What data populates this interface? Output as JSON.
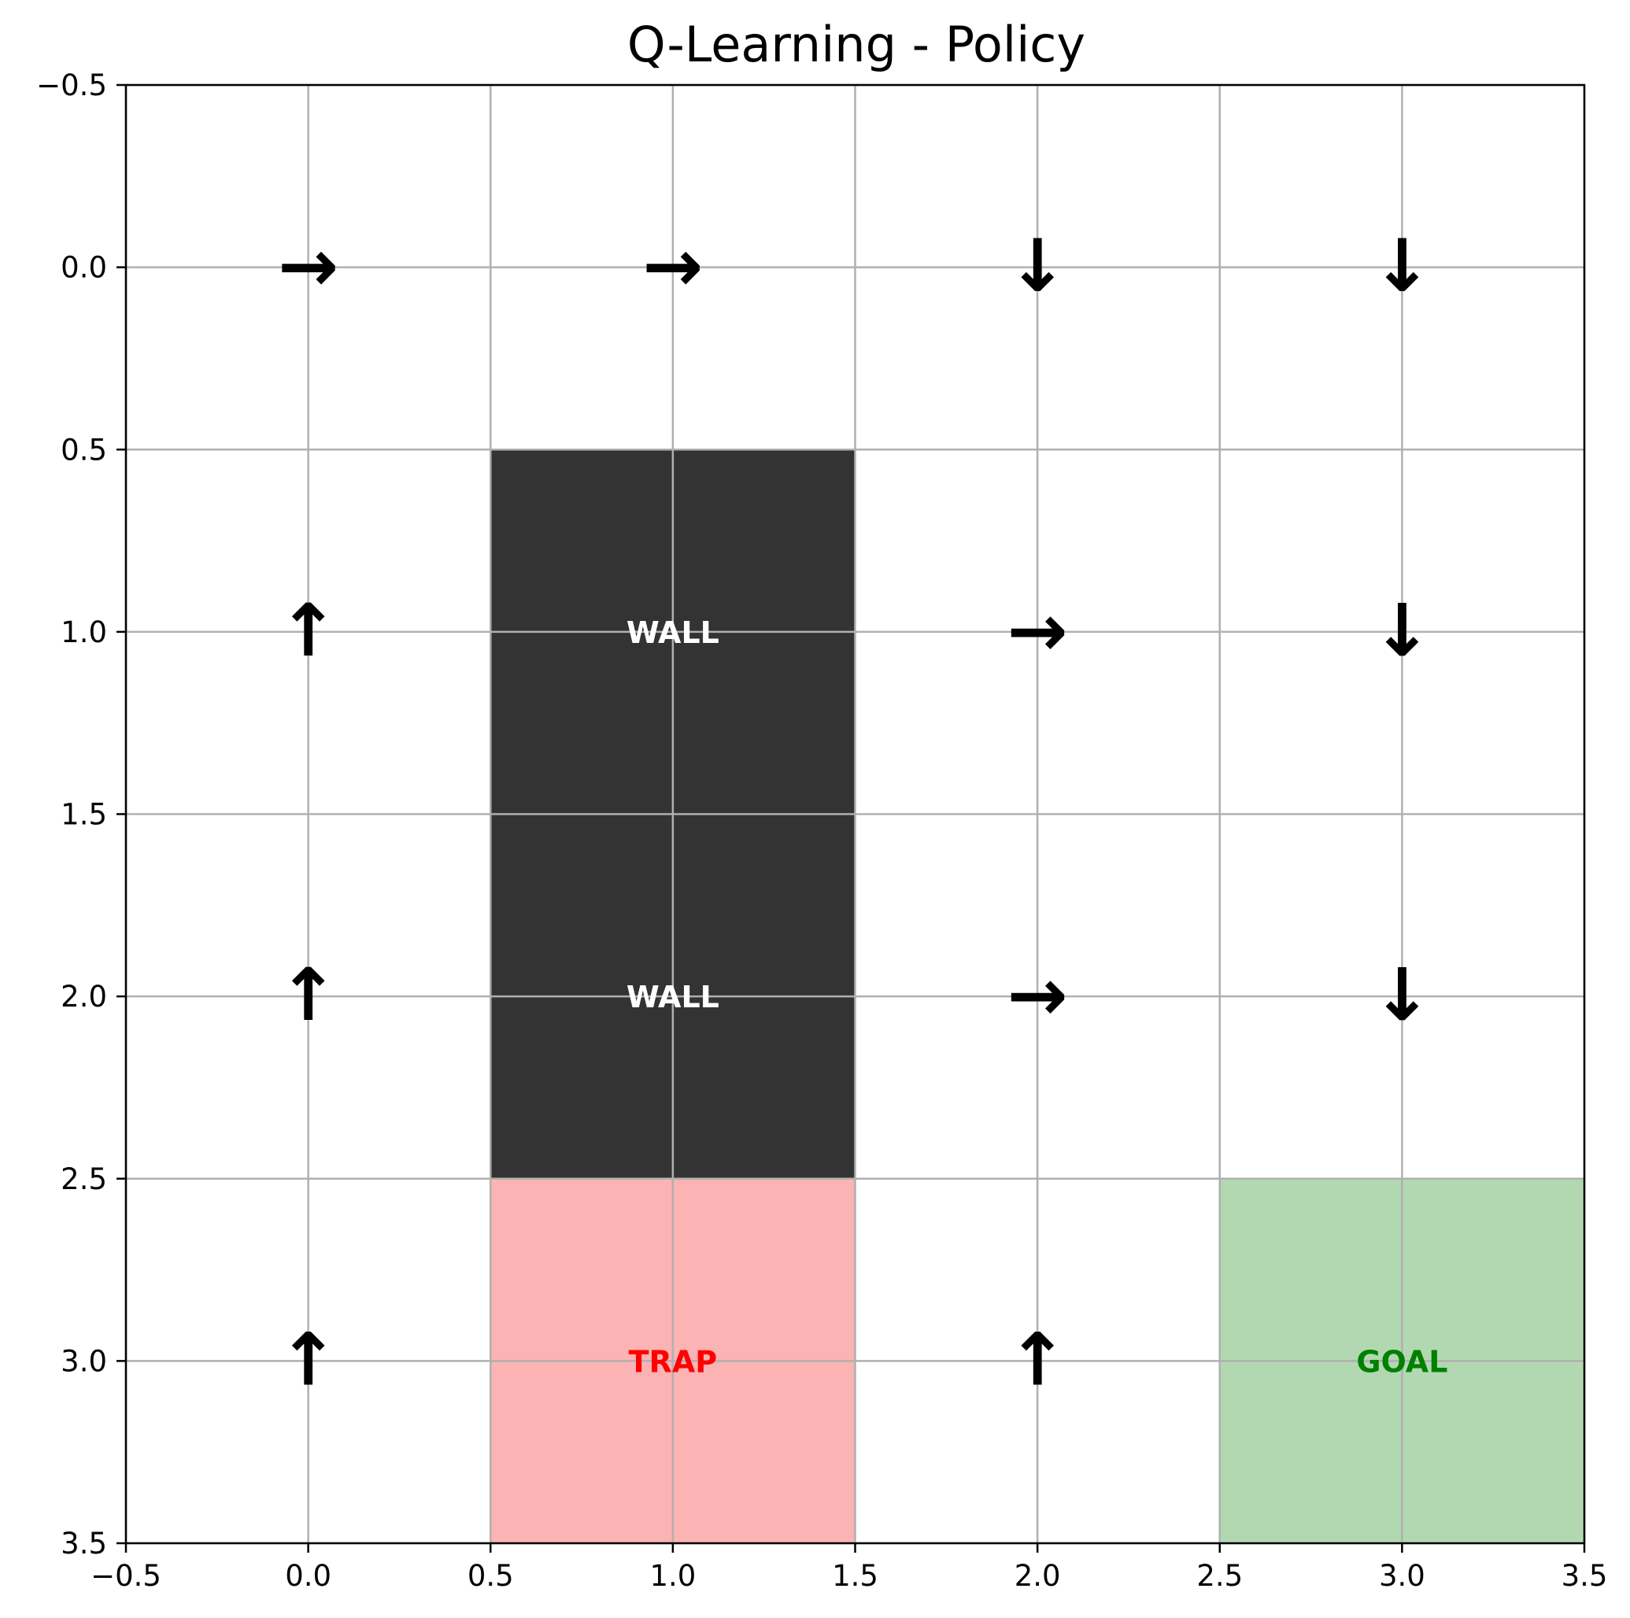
{
  "chart_data": {
    "type": "heatmap",
    "title": "Q-Learning - Policy",
    "xlim": [
      -0.5,
      3.5
    ],
    "ylim": [
      3.5,
      -0.5
    ],
    "y_inverted": true,
    "grid": true,
    "xticks": [
      "−0.5",
      "0.0",
      "0.5",
      "1.0",
      "1.5",
      "2.0",
      "2.5",
      "3.0",
      "3.5"
    ],
    "yticks": [
      "−0.5",
      "0.0",
      "0.5",
      "1.0",
      "1.5",
      "2.0",
      "2.5",
      "3.0",
      "3.5"
    ],
    "xtick_values": [
      -0.5,
      0.0,
      0.5,
      1.0,
      1.5,
      2.0,
      2.5,
      3.0,
      3.5
    ],
    "ytick_values": [
      -0.5,
      0.0,
      0.5,
      1.0,
      1.5,
      2.0,
      2.5,
      3.0,
      3.5
    ],
    "grid_size": [
      4,
      4
    ],
    "cells": [
      {
        "row": 1,
        "col": 1,
        "type": "wall",
        "label": "WALL",
        "fill": "#333333",
        "text_color": "#ffffff"
      },
      {
        "row": 2,
        "col": 1,
        "type": "wall",
        "label": "WALL",
        "fill": "#333333",
        "text_color": "#ffffff"
      },
      {
        "row": 3,
        "col": 1,
        "type": "trap",
        "label": "TRAP",
        "fill": "#fcb3b3",
        "text_color": "#ff0000"
      },
      {
        "row": 3,
        "col": 3,
        "type": "goal",
        "label": "GOAL",
        "fill": "#b2d8b2",
        "text_color": "#008000"
      }
    ],
    "policy": [
      {
        "row": 0,
        "col": 0,
        "action": "right",
        "glyph": "→"
      },
      {
        "row": 0,
        "col": 1,
        "action": "right",
        "glyph": "→"
      },
      {
        "row": 0,
        "col": 2,
        "action": "down",
        "glyph": "↓"
      },
      {
        "row": 0,
        "col": 3,
        "action": "down",
        "glyph": "↓"
      },
      {
        "row": 1,
        "col": 0,
        "action": "up",
        "glyph": "↑"
      },
      {
        "row": 1,
        "col": 2,
        "action": "right",
        "glyph": "→"
      },
      {
        "row": 1,
        "col": 3,
        "action": "down",
        "glyph": "↓"
      },
      {
        "row": 2,
        "col": 0,
        "action": "up",
        "glyph": "↑"
      },
      {
        "row": 2,
        "col": 2,
        "action": "right",
        "glyph": "→"
      },
      {
        "row": 2,
        "col": 3,
        "action": "down",
        "glyph": "↓"
      },
      {
        "row": 3,
        "col": 0,
        "action": "up",
        "glyph": "↑"
      },
      {
        "row": 3,
        "col": 2,
        "action": "up",
        "glyph": "↑"
      }
    ],
    "colors": {
      "grid": "#b0b0b0",
      "axis": "#000000",
      "arrow": "#000000"
    }
  }
}
